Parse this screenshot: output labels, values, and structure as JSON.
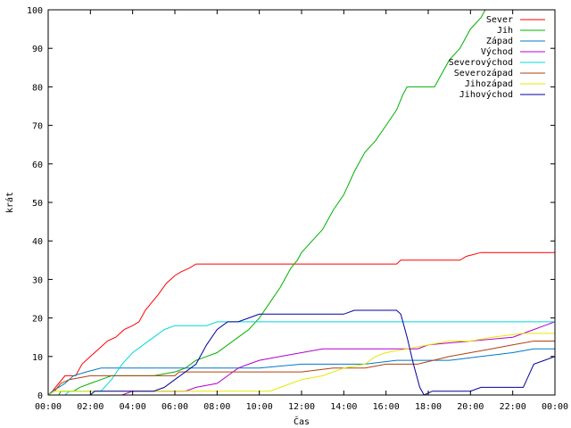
{
  "chart_data": {
    "type": "line",
    "xlabel": "Čas",
    "ylabel": "krát",
    "xlim": [
      0,
      24
    ],
    "ylim": [
      0,
      100
    ],
    "grid": false,
    "legend_position": "top-right",
    "x_ticks": [
      "00:00",
      "02:00",
      "04:00",
      "06:00",
      "08:00",
      "10:00",
      "12:00",
      "14:00",
      "16:00",
      "18:00",
      "20:00",
      "22:00",
      "00:00"
    ],
    "y_ticks": [
      "0",
      "10",
      "20",
      "30",
      "40",
      "50",
      "60",
      "70",
      "80",
      "90",
      "100"
    ],
    "series": [
      {
        "name": "Sever",
        "color": "#ff0000",
        "points": [
          [
            0,
            0
          ],
          [
            0.2,
            1
          ],
          [
            0.5,
            3
          ],
          [
            0.8,
            5
          ],
          [
            1.3,
            5
          ],
          [
            1.6,
            8
          ],
          [
            2.0,
            10
          ],
          [
            2.4,
            12
          ],
          [
            2.8,
            14
          ],
          [
            3.2,
            15
          ],
          [
            3.6,
            17
          ],
          [
            4.0,
            18
          ],
          [
            4.3,
            19
          ],
          [
            4.6,
            22
          ],
          [
            4.9,
            24
          ],
          [
            5.2,
            26
          ],
          [
            5.6,
            29
          ],
          [
            6.0,
            31
          ],
          [
            6.3,
            32
          ],
          [
            6.7,
            33
          ],
          [
            7.0,
            34
          ],
          [
            10.0,
            34
          ],
          [
            16.5,
            34
          ],
          [
            16.7,
            35
          ],
          [
            19.5,
            35
          ],
          [
            19.8,
            36
          ],
          [
            20.5,
            37
          ],
          [
            24,
            37
          ]
        ]
      },
      {
        "name": "Jih",
        "color": "#00b000",
        "points": [
          [
            0,
            0
          ],
          [
            0.5,
            0
          ],
          [
            0.6,
            1
          ],
          [
            1.2,
            1
          ],
          [
            1.5,
            2
          ],
          [
            2.0,
            3
          ],
          [
            2.5,
            4
          ],
          [
            3.0,
            5
          ],
          [
            4.0,
            5
          ],
          [
            5.0,
            5
          ],
          [
            6.0,
            6
          ],
          [
            6.5,
            7
          ],
          [
            7.0,
            9
          ],
          [
            7.5,
            10
          ],
          [
            8.0,
            11
          ],
          [
            8.5,
            13
          ],
          [
            9.0,
            15
          ],
          [
            9.5,
            17
          ],
          [
            10.0,
            20
          ],
          [
            10.5,
            24
          ],
          [
            11.0,
            28
          ],
          [
            11.5,
            33
          ],
          [
            11.8,
            35
          ],
          [
            12.0,
            37
          ],
          [
            12.5,
            40
          ],
          [
            13.0,
            43
          ],
          [
            13.5,
            48
          ],
          [
            14.0,
            52
          ],
          [
            14.5,
            58
          ],
          [
            15.0,
            63
          ],
          [
            15.5,
            66
          ],
          [
            16.0,
            70
          ],
          [
            16.5,
            74
          ],
          [
            16.8,
            78
          ],
          [
            17.0,
            80
          ],
          [
            18.0,
            80
          ],
          [
            18.3,
            80
          ],
          [
            18.6,
            83
          ],
          [
            19.0,
            87
          ],
          [
            19.5,
            90
          ],
          [
            20.0,
            95
          ],
          [
            20.5,
            98
          ],
          [
            20.7,
            100
          ]
        ]
      },
      {
        "name": "Západ",
        "color": "#0078c8",
        "points": [
          [
            0,
            0
          ],
          [
            0.2,
            1
          ],
          [
            0.5,
            2
          ],
          [
            0.8,
            3
          ],
          [
            1.2,
            5
          ],
          [
            1.8,
            6
          ],
          [
            2.5,
            7
          ],
          [
            5.0,
            7
          ],
          [
            8.0,
            7
          ],
          [
            10.0,
            7
          ],
          [
            12.0,
            8
          ],
          [
            15.0,
            8
          ],
          [
            16.5,
            9
          ],
          [
            19.0,
            9
          ],
          [
            20.5,
            10
          ],
          [
            22.0,
            11
          ],
          [
            23.0,
            12
          ],
          [
            24,
            12
          ]
        ]
      },
      {
        "name": "Východ",
        "color": "#b000d0",
        "points": [
          [
            0,
            0
          ],
          [
            3.5,
            0
          ],
          [
            4.0,
            1
          ],
          [
            6.5,
            1
          ],
          [
            7.0,
            2
          ],
          [
            8.0,
            3
          ],
          [
            8.5,
            5
          ],
          [
            9.0,
            7
          ],
          [
            9.5,
            8
          ],
          [
            10.0,
            9
          ],
          [
            11.0,
            10
          ],
          [
            12.0,
            11
          ],
          [
            13.0,
            12
          ],
          [
            16.0,
            12
          ],
          [
            17.5,
            12
          ],
          [
            18.0,
            13
          ],
          [
            20.0,
            14
          ],
          [
            22.0,
            15
          ],
          [
            23.0,
            17
          ],
          [
            23.5,
            18
          ],
          [
            24,
            19
          ]
        ]
      },
      {
        "name": "Severovýchod",
        "color": "#00d8d8",
        "points": [
          [
            0,
            0
          ],
          [
            0.8,
            0
          ],
          [
            1.0,
            1
          ],
          [
            2.5,
            1
          ],
          [
            3.0,
            4
          ],
          [
            3.5,
            8
          ],
          [
            4.0,
            11
          ],
          [
            4.5,
            13
          ],
          [
            5.0,
            15
          ],
          [
            5.5,
            17
          ],
          [
            6.0,
            18
          ],
          [
            7.5,
            18
          ],
          [
            8.0,
            19
          ],
          [
            12.0,
            19
          ],
          [
            18.0,
            19
          ],
          [
            24,
            19
          ]
        ]
      },
      {
        "name": "Severozápad",
        "color": "#b04010",
        "points": [
          [
            0,
            0
          ],
          [
            0.3,
            1
          ],
          [
            0.6,
            3
          ],
          [
            1.0,
            4
          ],
          [
            2.0,
            5
          ],
          [
            5.0,
            5
          ],
          [
            6.0,
            5
          ],
          [
            6.2,
            6
          ],
          [
            8.0,
            6
          ],
          [
            12.0,
            6
          ],
          [
            13.5,
            7
          ],
          [
            15.0,
            7
          ],
          [
            16.0,
            8
          ],
          [
            17.5,
            8
          ],
          [
            19.0,
            10
          ],
          [
            20.0,
            11
          ],
          [
            21.0,
            12
          ],
          [
            22.0,
            13
          ],
          [
            23.0,
            14
          ],
          [
            24,
            14
          ]
        ]
      },
      {
        "name": "Jihozápad",
        "color": "#e8e800",
        "points": [
          [
            0,
            0
          ],
          [
            0.3,
            1
          ],
          [
            10.5,
            1
          ],
          [
            11.0,
            2
          ],
          [
            11.5,
            3
          ],
          [
            12.0,
            4
          ],
          [
            13.0,
            5
          ],
          [
            14.0,
            7
          ],
          [
            15.0,
            8
          ],
          [
            15.5,
            10
          ],
          [
            16.0,
            11
          ],
          [
            17.0,
            12
          ],
          [
            18.0,
            13
          ],
          [
            19.0,
            14
          ],
          [
            20.0,
            14
          ],
          [
            21.0,
            15
          ],
          [
            22.5,
            16
          ],
          [
            24,
            16
          ]
        ]
      },
      {
        "name": "Jihovýchod",
        "color": "#0000a0",
        "points": [
          [
            0,
            0
          ],
          [
            2.0,
            0
          ],
          [
            2.2,
            1
          ],
          [
            5.0,
            1
          ],
          [
            5.5,
            2
          ],
          [
            6.0,
            4
          ],
          [
            6.5,
            6
          ],
          [
            7.0,
            8
          ],
          [
            7.5,
            13
          ],
          [
            8.0,
            17
          ],
          [
            8.5,
            19
          ],
          [
            9.0,
            19
          ],
          [
            9.5,
            20
          ],
          [
            10.0,
            21
          ],
          [
            12.0,
            21
          ],
          [
            14.0,
            21
          ],
          [
            14.5,
            22
          ],
          [
            16.5,
            22
          ],
          [
            16.7,
            21
          ],
          [
            17.0,
            15
          ],
          [
            17.3,
            8
          ],
          [
            17.6,
            2
          ],
          [
            17.8,
            0
          ],
          [
            18.2,
            1
          ],
          [
            20.0,
            1
          ],
          [
            20.5,
            2
          ],
          [
            22.5,
            2
          ],
          [
            23.0,
            8
          ],
          [
            23.5,
            9
          ],
          [
            24,
            10
          ]
        ]
      }
    ]
  }
}
